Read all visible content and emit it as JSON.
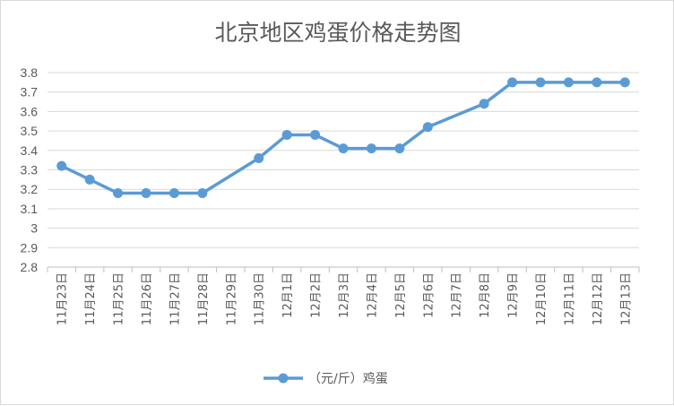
{
  "chart_data": {
    "type": "line",
    "title": "北京地区鸡蛋价格走势图",
    "xlabel": "",
    "ylabel": "",
    "ylim": [
      2.8,
      3.8
    ],
    "yticks": [
      "2.8",
      "2.9",
      "3",
      "3.1",
      "3.2",
      "3.3",
      "3.4",
      "3.5",
      "3.6",
      "3.7",
      "3.8"
    ],
    "categories": [
      "11月23日",
      "11月24日",
      "11月25日",
      "11月26日",
      "11月27日",
      "11月28日",
      "11月29日",
      "11月30日",
      "12月1日",
      "12月2日",
      "12月3日",
      "12月4日",
      "12月5日",
      "12月6日",
      "12月7日",
      "12月8日",
      "12月9日",
      "12月10日",
      "12月11日",
      "12月12日",
      "12月13日"
    ],
    "series": [
      {
        "name": "（元/斤）鸡蛋",
        "color": "#5b9bd5",
        "values": [
          3.32,
          3.25,
          3.18,
          3.18,
          3.18,
          3.18,
          null,
          3.36,
          3.48,
          3.48,
          3.41,
          3.41,
          3.41,
          3.52,
          null,
          3.64,
          3.75,
          3.75,
          3.75,
          3.75,
          3.75
        ]
      }
    ],
    "grid": true,
    "legend": "bottom"
  }
}
